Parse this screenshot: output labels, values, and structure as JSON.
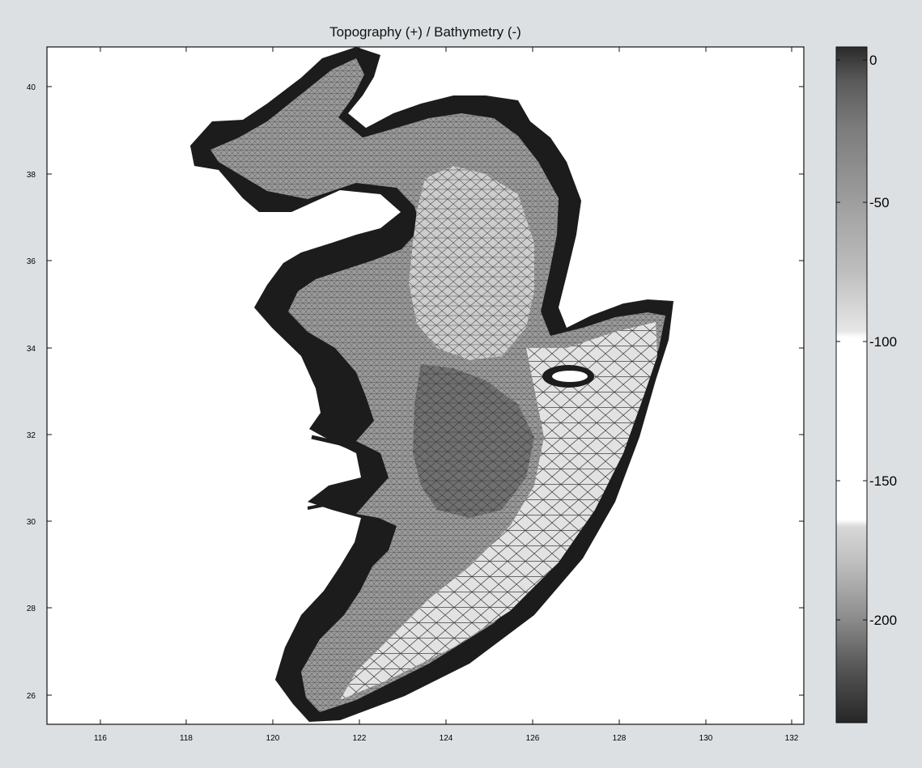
{
  "title": "Topography (+) / Bathymetry (-)",
  "map": {
    "x_ticks": [
      "116",
      "118",
      "120",
      "122",
      "124",
      "126",
      "128",
      "130",
      "132"
    ],
    "y_ticks": [
      "26",
      "28",
      "30",
      "32",
      "34",
      "36",
      "38",
      "40"
    ],
    "lon_range": [
      114.5,
      132.2
    ],
    "lat_range": [
      25.3,
      40.9
    ]
  },
  "colorbar": {
    "ticks": [
      "0",
      "-50",
      "-100",
      "-150",
      "-200"
    ],
    "range": [
      5,
      -240
    ]
  },
  "colors": {
    "land": "#1c1c1c",
    "shallow": "#9b9b9b",
    "mid": "#cdcdcd",
    "deep": "#707070",
    "shelf_edge": "#ffffff",
    "mesh_line": "#2a2a2a",
    "background": "#dde0e2",
    "plot_background": "#ffffff"
  }
}
